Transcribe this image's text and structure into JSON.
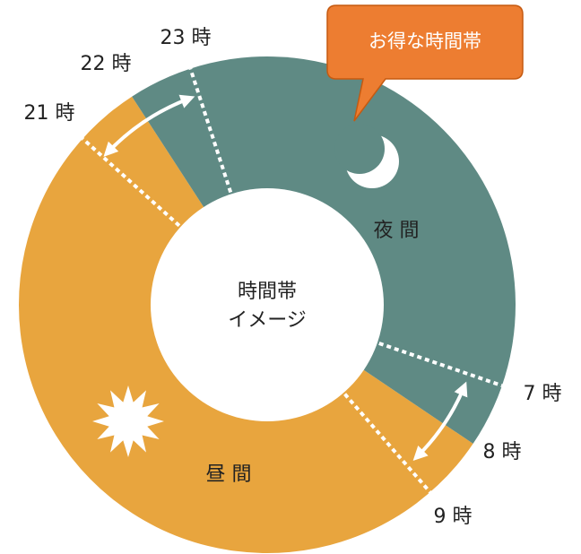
{
  "hour_labels": {
    "h23": "23 時",
    "h22": "22 時",
    "h21": "21 時",
    "h7": "7 時",
    "h8": "8 時",
    "h9": "9 時"
  },
  "segments": {
    "night": "夜 間",
    "day": "昼 間"
  },
  "center": {
    "line1": "時間帯",
    "line2": "イメージ"
  },
  "callout": "お得な時間帯"
}
